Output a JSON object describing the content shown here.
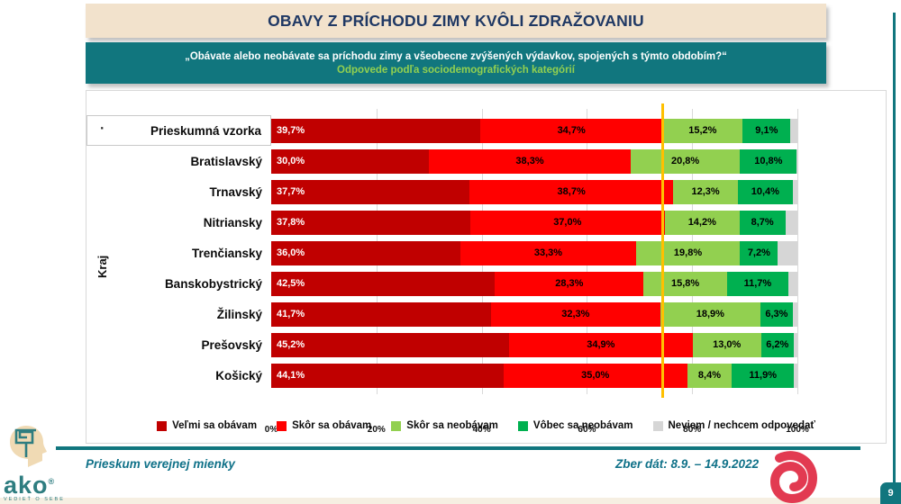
{
  "title": "OBAVY Z PRÍCHODU ZIMY KVÔLI ZDRAŽOVANIU",
  "subtitle": {
    "line1": "„Obávate alebo neobávate sa príchodu zimy a všeobecne zvýšených výdavkov, spojených s týmto obdobím?“",
    "line2": "Odpovede podľa sociodemografických kategórií"
  },
  "chart_data": {
    "type": "bar",
    "orientation": "horizontal-stacked",
    "ylabel": "Kraj",
    "xlim": [
      0,
      100
    ],
    "x_ticks": [
      "0%",
      "20%",
      "40%",
      "60%",
      "80%",
      "100%"
    ],
    "gridlines_pct": [
      20,
      40,
      60,
      80,
      100
    ],
    "reference_line": {
      "value": 74.4,
      "color": "#FFC000"
    },
    "first_row_bullet": "·",
    "categories": [
      "Prieskumná vzorka",
      "Bratislavský",
      "Trnavský",
      "Nitriansky",
      "Trenčiansky",
      "Banskobystrický",
      "Žilinský",
      "Prešovský",
      "Košický"
    ],
    "series": [
      {
        "name": "Veľmi sa obávam",
        "color": "#C00000",
        "label_color": "#FFFFFF",
        "show_labels": true,
        "values": [
          39.7,
          30.0,
          37.7,
          37.8,
          36.0,
          42.5,
          41.7,
          45.2,
          44.1
        ]
      },
      {
        "name": "Skôr sa obávam",
        "color": "#FF0000",
        "label_color": "#000000",
        "show_labels": true,
        "values": [
          34.7,
          38.3,
          38.7,
          37.0,
          33.3,
          28.3,
          32.3,
          34.9,
          35.0
        ]
      },
      {
        "name": "Skôr sa neobávam",
        "color": "#92D050",
        "label_color": "#000000",
        "show_labels": true,
        "values": [
          15.2,
          20.8,
          12.3,
          14.2,
          19.8,
          15.8,
          18.9,
          13.0,
          8.4
        ]
      },
      {
        "name": "Vôbec sa neobávam",
        "color": "#00B050",
        "label_color": "#000000",
        "show_labels": true,
        "values": [
          9.1,
          10.8,
          10.4,
          8.7,
          7.2,
          11.7,
          6.3,
          6.2,
          11.9
        ]
      },
      {
        "name": "Neviem / nechcem odpovedať",
        "color": "#D6D6D6",
        "label_color": null,
        "show_labels": false,
        "values": [
          1.3,
          0.1,
          0.9,
          2.3,
          3.7,
          1.7,
          0.8,
          0.7,
          0.6
        ]
      }
    ]
  },
  "legend": [
    {
      "label": "Veľmi sa obávam",
      "color": "#C00000"
    },
    {
      "label": "Skôr sa obávam",
      "color": "#FF0000"
    },
    {
      "label": "Skôr sa neobávam",
      "color": "#92D050"
    },
    {
      "label": "Vôbec sa neobávam",
      "color": "#00B050"
    },
    {
      "label": "Neviem / nechcem odpovedať",
      "color": "#D6D6D6"
    }
  ],
  "footer": {
    "left": "Prieskum verejnej mienky",
    "right": "Zber dát: 8.9. – 14.9.2022",
    "page_number": "9",
    "logo": {
      "text": "ako",
      "reg": "®",
      "tagline": "VEDIEŤ O SEBE"
    }
  },
  "colors": {
    "accent_teal": "#11767E",
    "title_bg": "#F2E2CC",
    "title_text": "#1F3864",
    "subtitle_green": "#92D050",
    "reference_line": "#FFC000",
    "swirl_red": "#E23A51"
  }
}
